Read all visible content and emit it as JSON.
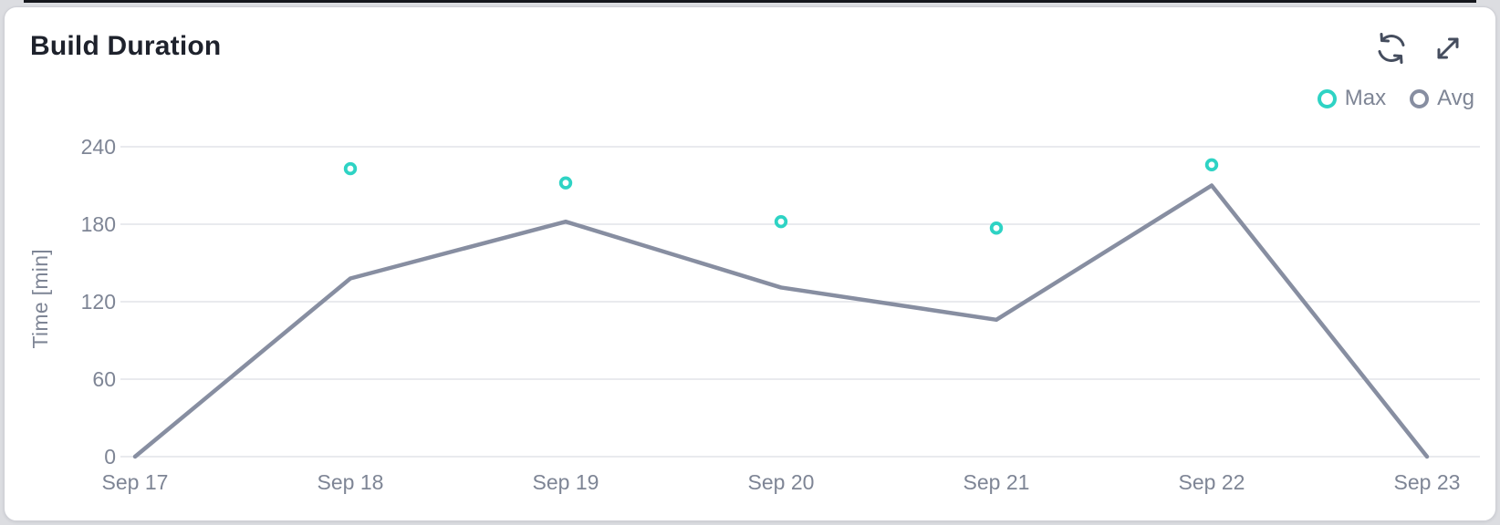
{
  "card": {
    "title": "Build Duration"
  },
  "toolbar": {
    "icons": [
      "refresh-icon",
      "expand-icon"
    ]
  },
  "legend": [
    {
      "label": "Max",
      "color": "#2ed3c4"
    },
    {
      "label": "Avg",
      "color": "#878ea1"
    }
  ],
  "colors": {
    "accent_teal": "#2ed3c4",
    "line_gray": "#878ea1",
    "grid": "#e2e3e9",
    "tick_text": "#7e8595",
    "title_text": "#1e222c",
    "icon": "#454d5e",
    "card_bg": "#ffffff",
    "page_bg": "#dcdde1"
  },
  "chart_data": {
    "type": "line",
    "title": "Build Duration",
    "categories": [
      "Sep 17",
      "Sep 18",
      "Sep 19",
      "Sep 20",
      "Sep 21",
      "Sep 22",
      "Sep 23"
    ],
    "series": [
      {
        "name": "Max",
        "render": "scatter",
        "color": "#2ed3c4",
        "values": [
          null,
          223,
          212,
          182,
          177,
          226,
          null
        ]
      },
      {
        "name": "Avg",
        "render": "line",
        "color": "#878ea1",
        "values": [
          0,
          138,
          182,
          131,
          106,
          210,
          0
        ]
      }
    ],
    "xlabel": "",
    "ylabel": "Time [min]",
    "yticks": [
      0,
      60,
      120,
      180,
      240
    ],
    "ylim": [
      0,
      252
    ],
    "grid": true,
    "legend_position": "top-right"
  }
}
